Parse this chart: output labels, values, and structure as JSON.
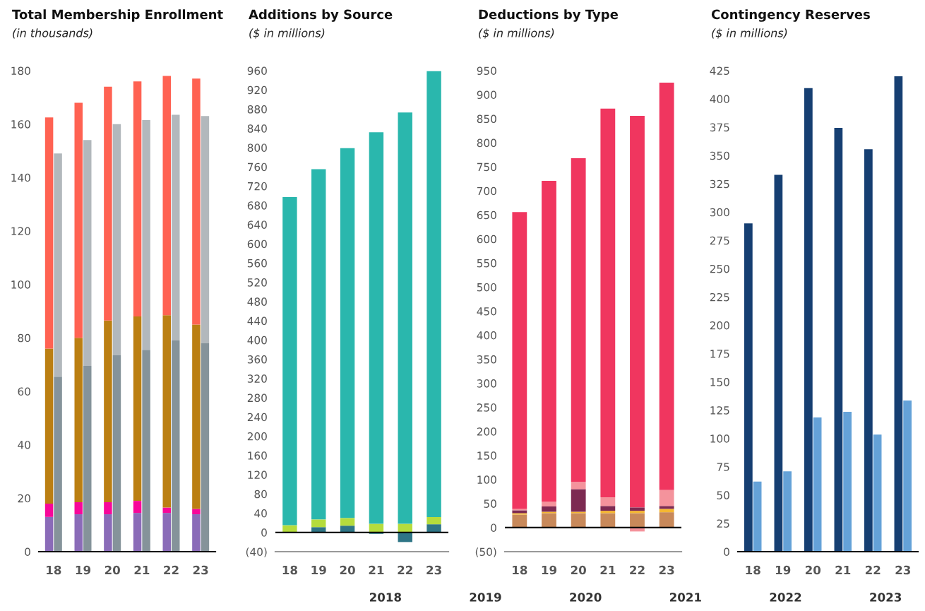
{
  "chart_data": [
    {
      "type": "bar",
      "title": "Total Membership Enrollment",
      "subtitle": "(in thousands)",
      "categories": [
        "18",
        "19",
        "20",
        "21",
        "22",
        "23"
      ],
      "series": [
        {
          "color": "#8a6bb8",
          "base": [
            0,
            0,
            0,
            0,
            0,
            0
          ],
          "values": [
            13,
            14,
            14,
            14.5,
            14.5,
            14
          ]
        },
        {
          "color": "#f7079a",
          "base": [
            13,
            14,
            14,
            14.5,
            14.5,
            14
          ],
          "values": [
            5,
            4.5,
            4.5,
            4.5,
            2,
            2
          ]
        },
        {
          "color": "#bb7f12",
          "base": [
            18,
            18.5,
            18.5,
            19,
            16.5,
            16
          ],
          "values": [
            58,
            61.5,
            68,
            69,
            72,
            69
          ]
        },
        {
          "color": "#ff6252",
          "base": [
            76,
            80,
            86.5,
            88,
            88.5,
            85
          ],
          "values": [
            86.5,
            88,
            87.5,
            88,
            89.5,
            92
          ]
        },
        {
          "color": "#85939a",
          "base": [
            0,
            0,
            0,
            0,
            0,
            0
          ],
          "values": [
            65.5,
            69.5,
            73.5,
            75.5,
            79,
            78
          ]
        },
        {
          "color": "#b2b8bc",
          "base": [
            65.5,
            69.5,
            73.5,
            75.5,
            79,
            78
          ],
          "values": [
            83.5,
            84.5,
            86.5,
            86,
            84.5,
            85
          ]
        }
      ],
      "ylim": [
        0,
        180
      ],
      "yticks": [
        0,
        20,
        40,
        60,
        80,
        100,
        120,
        140,
        160,
        180
      ]
    },
    {
      "type": "bar",
      "title": "Additions by Source",
      "subtitle": "($ in millions)",
      "categories": [
        "18",
        "19",
        "20",
        "21",
        "22",
        "23"
      ],
      "stacked": true,
      "series": [
        {
          "color": "#2e7586",
          "values": [
            0,
            11,
            14,
            -3,
            -20,
            17
          ]
        },
        {
          "color": "#b5dc3c",
          "values": [
            15,
            16,
            16,
            18,
            18,
            15
          ]
        },
        {
          "color": "#2ab7ad",
          "values": [
            682,
            728,
            769,
            814,
            855,
            927
          ]
        }
      ],
      "ylim": [
        -40,
        960
      ],
      "yticks": [
        {
          "value": -40,
          "label": "(40)"
        },
        0,
        40,
        80,
        120,
        160,
        200,
        240,
        280,
        320,
        360,
        400,
        440,
        480,
        520,
        560,
        600,
        640,
        680,
        720,
        760,
        800,
        840,
        880,
        920,
        960
      ],
      "ref_lines": [
        {
          "axis": "y",
          "value": 0,
          "color": "#000000"
        }
      ]
    },
    {
      "type": "bar",
      "title": "Deductions by Type",
      "subtitle": "($ in millions)",
      "categories": [
        "18",
        "19",
        "20",
        "21",
        "22",
        "23"
      ],
      "stacked": true,
      "series": [
        {
          "color": "#c8895a",
          "values": [
            27,
            30,
            30,
            30,
            30,
            32
          ]
        },
        {
          "color": "#f5b731",
          "values": [
            3,
            3,
            3,
            5,
            5,
            7
          ]
        },
        {
          "color": "#7d2a52",
          "values": [
            6,
            11,
            47,
            10,
            7,
            6
          ]
        },
        {
          "color": "#f4939c",
          "values": [
            3,
            10,
            15,
            18,
            -8,
            33
          ]
        },
        {
          "color": "#f0365f",
          "values": [
            617,
            667,
            673,
            808,
            814,
            847
          ]
        }
      ],
      "ylim": [
        -50,
        950
      ],
      "yticks": [
        {
          "value": -50,
          "label": "(50)"
        },
        0,
        50,
        100,
        150,
        200,
        250,
        300,
        350,
        400,
        450,
        500,
        550,
        600,
        650,
        700,
        750,
        800,
        850,
        900,
        950
      ],
      "ref_lines": [
        {
          "axis": "y",
          "value": 0,
          "color": "#000000"
        }
      ]
    },
    {
      "type": "bar",
      "title": "Contingency Reserves",
      "subtitle": "($ in millions)",
      "categories": [
        "18",
        "19",
        "20",
        "21",
        "22",
        "23"
      ],
      "series": [
        {
          "color": "#163f72",
          "values": [
            290,
            333,
            409.5,
            374.5,
            355.5,
            420
          ]
        },
        {
          "color": "#65a2d8",
          "values": [
            62,
            71,
            118.5,
            123.5,
            103.5,
            133.5
          ]
        }
      ],
      "ylim": [
        0,
        425
      ],
      "yticks": [
        0,
        25,
        50,
        75,
        100,
        125,
        150,
        175,
        200,
        225,
        250,
        275,
        300,
        325,
        350,
        375,
        400,
        425
      ],
      "annotations": [
        "2018",
        "2019",
        "2020",
        "2021",
        "2022",
        "2023"
      ]
    }
  ]
}
